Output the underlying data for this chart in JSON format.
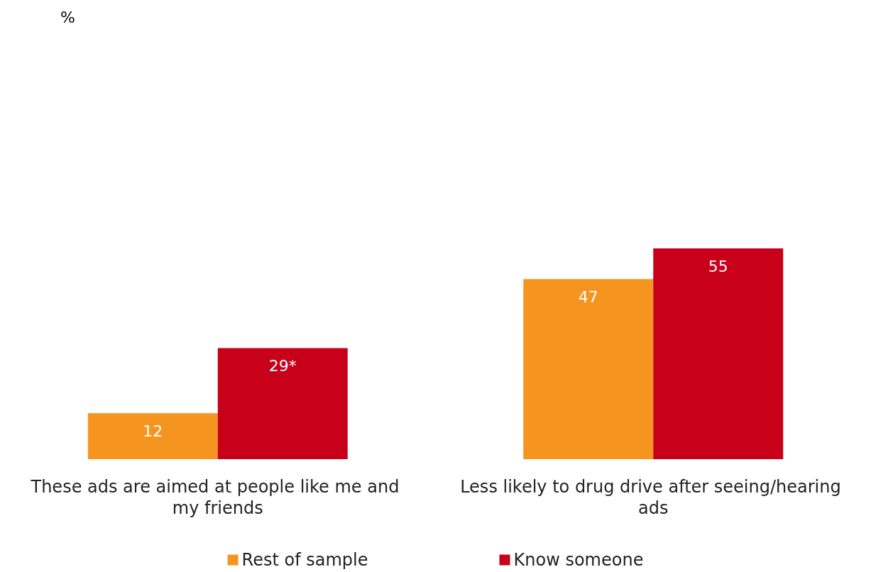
{
  "chart_data": {
    "type": "bar",
    "annotations": [
      "%"
    ],
    "categories": [
      "These ads are aimed at people like me and my friends",
      "Less likely to drug drive after seeing/hearing ads"
    ],
    "series": [
      {
        "name": "Rest of sample",
        "color": "#f5951f",
        "values": [
          12,
          47
        ],
        "value_labels": [
          "12",
          "47"
        ]
      },
      {
        "name": "Know someone",
        "color": "#c8001a",
        "values": [
          29,
          55
        ],
        "value_labels": [
          "29*",
          "55"
        ]
      }
    ],
    "legend": "bottom"
  }
}
